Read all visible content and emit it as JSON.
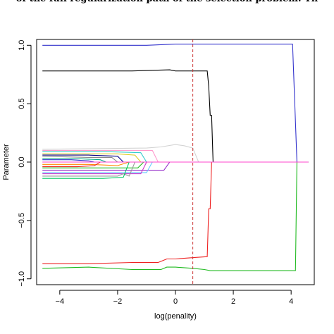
{
  "caption": "of the full regularization path of the selection problem. Th",
  "chart_data": {
    "type": "line",
    "xlabel": "log(penality)",
    "ylabel": "Parameter",
    "xlim": [
      -4.8,
      4.8
    ],
    "ylim": [
      -1.05,
      1.05
    ],
    "x_ticks": [
      -4,
      -2,
      0,
      2,
      4
    ],
    "y_ticks": [
      1.0,
      0.5,
      0.0,
      -0.5,
      -1.0
    ],
    "x_tick_labels": [
      "−4",
      "−2",
      "0",
      "2",
      "4"
    ],
    "y_tick_labels": [
      "1.0",
      "0.5",
      "0.0",
      "−0.5",
      "−1.0"
    ],
    "grid": false,
    "reference_line": {
      "x": 0.6,
      "style": "dashed",
      "color": "#cc3333"
    },
    "series": [
      {
        "color": "#3333cc",
        "points": [
          [
            -4.6,
            1.0
          ],
          [
            -3.0,
            1.0
          ],
          [
            -1.0,
            1.0
          ],
          [
            0.0,
            1.01
          ],
          [
            1.0,
            1.01
          ],
          [
            2.0,
            1.01
          ],
          [
            3.0,
            1.01
          ],
          [
            4.05,
            1.01
          ],
          [
            4.2,
            0.0
          ],
          [
            4.6,
            0.0
          ]
        ]
      },
      {
        "color": "#000000",
        "points": [
          [
            -4.6,
            0.78
          ],
          [
            -3.0,
            0.78
          ],
          [
            -1.5,
            0.78
          ],
          [
            -0.2,
            0.79
          ],
          [
            0.0,
            0.78
          ],
          [
            1.1,
            0.78
          ],
          [
            1.15,
            0.65
          ],
          [
            1.2,
            0.4
          ],
          [
            1.25,
            0.4
          ],
          [
            1.3,
            0.0
          ],
          [
            4.6,
            0.0
          ]
        ]
      },
      {
        "color": "#ee2222",
        "points": [
          [
            -4.6,
            -0.87
          ],
          [
            -3.0,
            -0.87
          ],
          [
            -1.5,
            -0.86
          ],
          [
            -0.6,
            -0.86
          ],
          [
            -0.5,
            -0.85
          ],
          [
            -0.3,
            -0.83
          ],
          [
            0.0,
            -0.83
          ],
          [
            0.5,
            -0.82
          ],
          [
            1.1,
            -0.81
          ],
          [
            1.15,
            -0.4
          ],
          [
            1.2,
            -0.4
          ],
          [
            1.25,
            0.0
          ],
          [
            4.6,
            0.0
          ]
        ]
      },
      {
        "color": "#22bb22",
        "points": [
          [
            -4.6,
            -0.91
          ],
          [
            -3.0,
            -0.9
          ],
          [
            -1.5,
            -0.92
          ],
          [
            -0.5,
            -0.92
          ],
          [
            -0.3,
            -0.9
          ],
          [
            0.0,
            -0.9
          ],
          [
            0.6,
            -0.91
          ],
          [
            1.0,
            -0.92
          ],
          [
            1.2,
            -0.93
          ],
          [
            2.0,
            -0.93
          ],
          [
            3.0,
            -0.93
          ],
          [
            4.15,
            -0.93
          ],
          [
            4.2,
            0.0
          ],
          [
            4.6,
            0.0
          ]
        ]
      },
      {
        "color": "#d3d3d3",
        "points": [
          [
            -4.6,
            0.11
          ],
          [
            -1.0,
            0.12
          ],
          [
            -0.5,
            0.13
          ],
          [
            0.0,
            0.15
          ],
          [
            0.3,
            0.14
          ],
          [
            0.6,
            0.12
          ],
          [
            0.8,
            0.0
          ],
          [
            4.6,
            0.0
          ]
        ]
      },
      {
        "color": "#ff99cc",
        "points": [
          [
            -4.6,
            0.1
          ],
          [
            -1.5,
            0.1
          ],
          [
            -0.8,
            0.1
          ],
          [
            -0.6,
            0.0
          ],
          [
            4.6,
            0.0
          ]
        ]
      },
      {
        "color": "#33cccc",
        "points": [
          [
            -4.6,
            0.09
          ],
          [
            -2.5,
            0.09
          ],
          [
            -1.2,
            0.08
          ],
          [
            -1.0,
            0.0
          ],
          [
            4.6,
            0.0
          ]
        ]
      },
      {
        "color": "#ddcc22",
        "points": [
          [
            -4.6,
            0.07
          ],
          [
            -2.0,
            0.07
          ],
          [
            -1.4,
            0.06
          ],
          [
            -1.2,
            0.0
          ],
          [
            4.6,
            0.0
          ]
        ]
      },
      {
        "color": "#000088",
        "points": [
          [
            -4.6,
            0.06
          ],
          [
            -3.0,
            0.06
          ],
          [
            -2.0,
            0.05
          ],
          [
            -1.8,
            0.0
          ],
          [
            4.6,
            0.0
          ]
        ]
      },
      {
        "color": "#888888",
        "points": [
          [
            -4.6,
            0.05
          ],
          [
            -3.0,
            0.04
          ],
          [
            -2.2,
            0.04
          ],
          [
            -2.0,
            0.0
          ],
          [
            4.6,
            0.0
          ]
        ]
      },
      {
        "color": "#00aa88",
        "points": [
          [
            -4.6,
            0.03
          ],
          [
            -3.5,
            0.03
          ],
          [
            -2.6,
            0.02
          ],
          [
            -2.4,
            0.0
          ],
          [
            4.6,
            0.0
          ]
        ]
      },
      {
        "color": "#3333cc",
        "points": [
          [
            -4.6,
            0.02
          ],
          [
            -3.6,
            0.02
          ],
          [
            -3.0,
            0.01
          ],
          [
            -2.8,
            0.0
          ],
          [
            4.6,
            0.0
          ]
        ]
      },
      {
        "color": "#ff8800",
        "points": [
          [
            -4.6,
            -0.02
          ],
          [
            -3.0,
            -0.02
          ],
          [
            -2.0,
            -0.03
          ],
          [
            -1.6,
            0.0
          ],
          [
            4.6,
            0.0
          ]
        ]
      },
      {
        "color": "#ee2222",
        "points": [
          [
            -4.6,
            -0.04
          ],
          [
            -3.4,
            -0.04
          ],
          [
            -2.8,
            -0.03
          ],
          [
            -2.6,
            0.0
          ],
          [
            4.6,
            0.0
          ]
        ]
      },
      {
        "color": "#22bb22",
        "points": [
          [
            -4.6,
            -0.05
          ],
          [
            -2.0,
            -0.05
          ],
          [
            -1.3,
            -0.05
          ],
          [
            -1.1,
            0.0
          ],
          [
            4.6,
            0.0
          ]
        ]
      },
      {
        "color": "#9933cc",
        "points": [
          [
            -4.6,
            -0.07
          ],
          [
            -1.5,
            -0.07
          ],
          [
            -0.4,
            -0.07
          ],
          [
            -0.2,
            0.0
          ],
          [
            4.6,
            0.0
          ]
        ]
      },
      {
        "color": "#66ccff",
        "points": [
          [
            -4.6,
            -0.09
          ],
          [
            -2.5,
            -0.09
          ],
          [
            -1.0,
            -0.09
          ],
          [
            -0.8,
            0.0
          ],
          [
            4.6,
            0.0
          ]
        ]
      },
      {
        "color": "#cc33cc",
        "points": [
          [
            -4.6,
            -0.1
          ],
          [
            -2.0,
            -0.1
          ],
          [
            -1.2,
            -0.1
          ],
          [
            -1.0,
            0.0
          ],
          [
            4.6,
            0.0
          ]
        ]
      },
      {
        "color": "#999999",
        "points": [
          [
            -4.6,
            -0.12
          ],
          [
            -3.0,
            -0.12
          ],
          [
            -2.0,
            -0.12
          ],
          [
            -1.8,
            -0.1
          ],
          [
            -1.6,
            -0.12
          ],
          [
            -1.4,
            -0.0
          ],
          [
            4.6,
            0.0
          ]
        ]
      },
      {
        "color": "#00cc66",
        "points": [
          [
            -4.6,
            -0.14
          ],
          [
            -2.5,
            -0.14
          ],
          [
            -1.8,
            -0.13
          ],
          [
            -1.6,
            0.0
          ],
          [
            4.6,
            0.0
          ]
        ]
      },
      {
        "color": "#ff44cc",
        "points": [
          [
            -4.6,
            0.0
          ],
          [
            4.6,
            0.0
          ]
        ]
      }
    ]
  }
}
